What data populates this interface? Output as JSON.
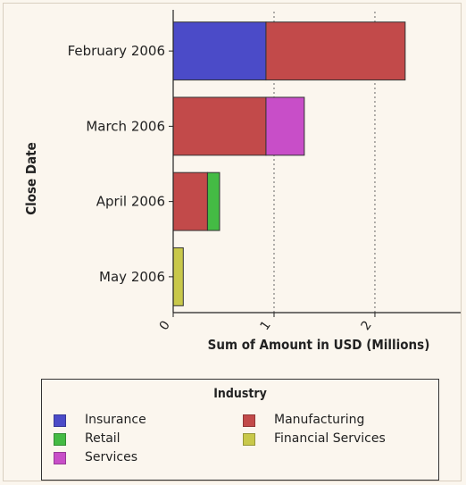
{
  "chart_data": {
    "type": "bar",
    "orientation": "horizontal",
    "stacked": true,
    "categories": [
      "February 2006",
      "March 2006",
      "April 2006",
      "May 2006"
    ],
    "series": [
      {
        "name": "Insurance",
        "color": "#4b4bc8",
        "values": [
          0.92,
          0,
          0,
          0
        ]
      },
      {
        "name": "Manufacturing",
        "color": "#c24a4a",
        "values": [
          1.38,
          0.92,
          0.34,
          0
        ]
      },
      {
        "name": "Services",
        "color": "#c84ec8",
        "values": [
          0,
          0.38,
          0,
          0
        ]
      },
      {
        "name": "Retail",
        "color": "#44bb44",
        "values": [
          0,
          0,
          0.12,
          0
        ]
      },
      {
        "name": "Financial Services",
        "color": "#c8c84a",
        "values": [
          0,
          0,
          0,
          0.1
        ]
      }
    ],
    "xlabel": "Sum of Amount in USD (Millions)",
    "ylabel": "Close Date",
    "xlim": [
      0,
      2.85
    ],
    "xticks": [
      "0",
      "1",
      "2"
    ],
    "grid": "vertical dotted",
    "legend": {
      "title": "Industry",
      "placement": "bottom",
      "items": [
        "Insurance",
        "Manufacturing",
        "Retail",
        "Financial Services",
        "Services"
      ]
    }
  }
}
